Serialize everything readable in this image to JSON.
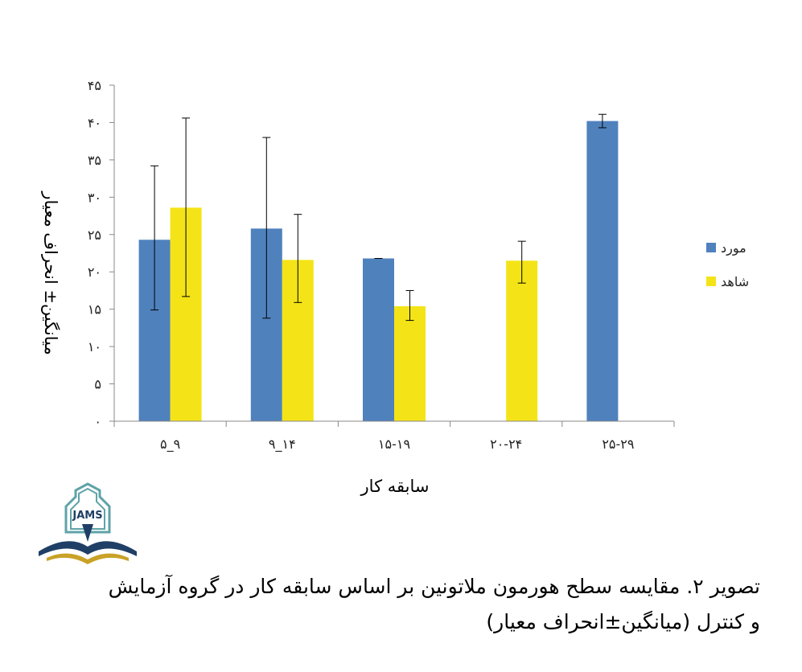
{
  "chart_data": {
    "type": "bar",
    "categories": [
      "۵_۹",
      "۹_۱۴",
      "۱۵-۱۹",
      "۲۰-۲۴",
      "۲۵-۲۹"
    ],
    "series": [
      {
        "name": "مورد",
        "color": "#4F81BD",
        "values": [
          24.3,
          25.8,
          21.8,
          null,
          40.2
        ],
        "error_low": [
          14.9,
          13.8,
          21.8,
          null,
          39.3
        ],
        "error_high": [
          34.2,
          38.0,
          21.8,
          null,
          41.1
        ]
      },
      {
        "name": "شاهد",
        "color": "#F4E417",
        "values": [
          28.6,
          21.6,
          15.4,
          21.5,
          null
        ],
        "error_low": [
          16.7,
          15.9,
          13.5,
          18.5,
          null
        ],
        "error_high": [
          40.6,
          27.7,
          17.5,
          24.1,
          null
        ]
      }
    ],
    "ylim": [
      0,
      45
    ],
    "yticks": [
      0,
      5,
      10,
      15,
      20,
      25,
      30,
      35,
      40,
      45
    ],
    "ytick_labels": [
      "۰",
      "۵",
      "۱۰",
      "۱۵",
      "۲۰",
      "۲۵",
      "۳۰",
      "۳۵",
      "۴۰",
      "۴۵"
    ],
    "xlabel": "سابقه کار",
    "ylabel": "میانگین± انحراف معیار",
    "legend_position": "right",
    "grid": false
  },
  "logo": {
    "text": "JAMS"
  },
  "caption": {
    "line1": "تصویر ۲. مقایسه سطح هورمون ملاتونین بر اساس سابقه کار در گروه آزمایش",
    "line2": "و کنترل (میانگین±انحراف معیار)"
  }
}
